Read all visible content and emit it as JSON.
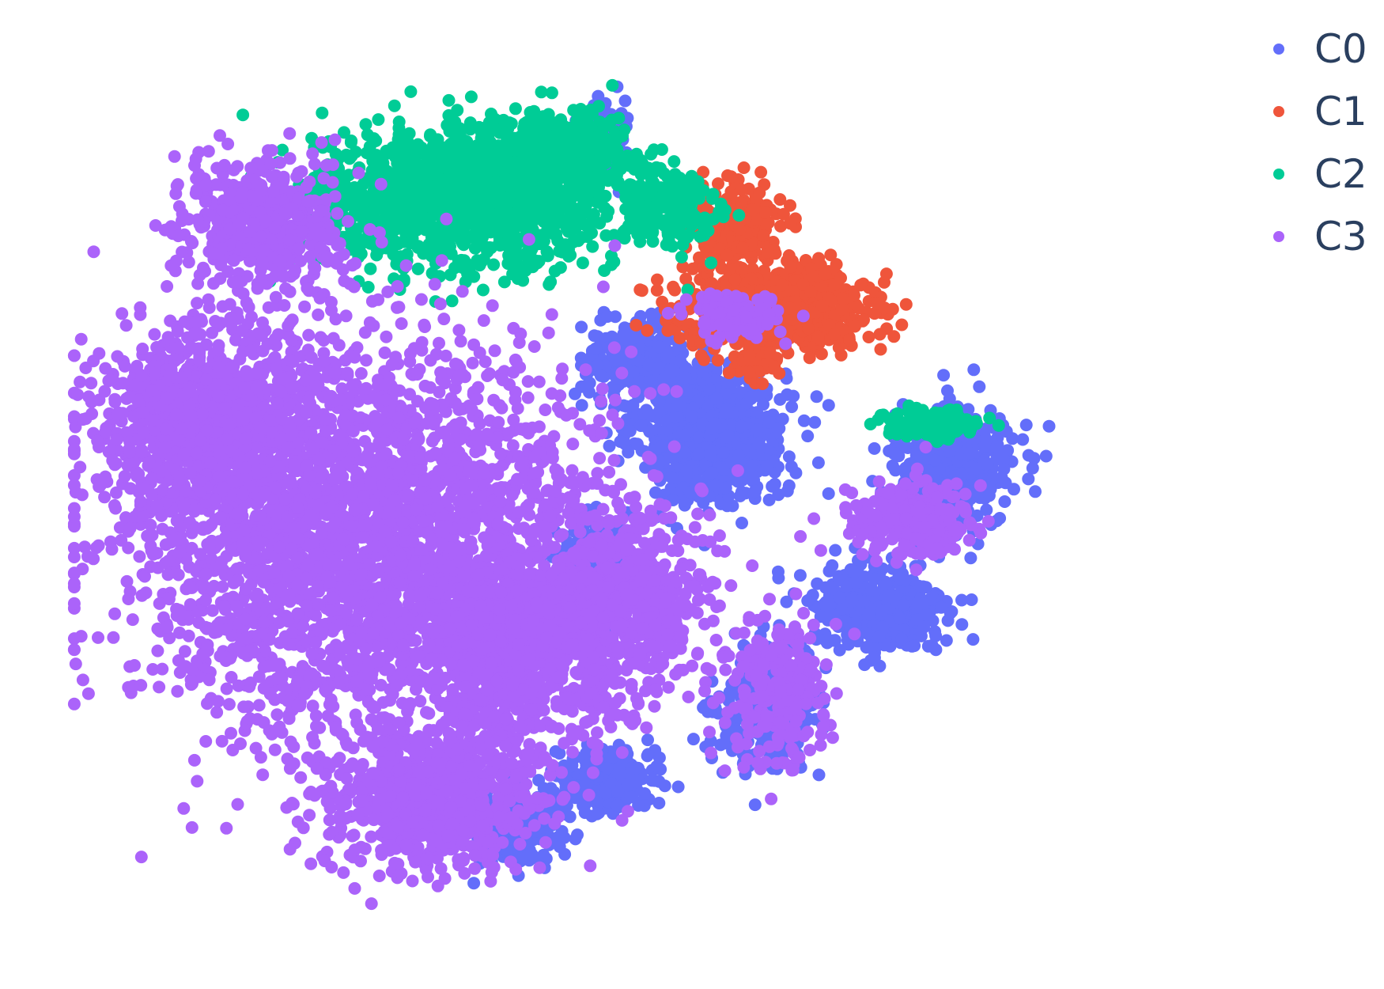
{
  "chart_data": {
    "type": "scatter",
    "title": "",
    "xlabel": "",
    "ylabel": "",
    "axes_visible": false,
    "grid": false,
    "legend_position": "top-right",
    "xlim": [
      0,
      100
    ],
    "ylim": [
      0,
      100
    ],
    "marker_size": 8,
    "series": [
      {
        "name": "C0",
        "color": "#636efa",
        "clusters": [
          {
            "cx": 59,
            "cy": 57,
            "rx": 6,
            "ry": 7,
            "n": 900
          },
          {
            "cx": 52,
            "cy": 65,
            "rx": 4,
            "ry": 4,
            "n": 300
          },
          {
            "cx": 81,
            "cy": 53,
            "rx": 5,
            "ry": 6,
            "n": 450
          },
          {
            "cx": 74,
            "cy": 37,
            "rx": 6,
            "ry": 5,
            "n": 400
          },
          {
            "cx": 64,
            "cy": 26,
            "rx": 4,
            "ry": 6,
            "n": 300
          },
          {
            "cx": 49,
            "cy": 18,
            "rx": 4,
            "ry": 3,
            "n": 300
          },
          {
            "cx": 41,
            "cy": 13,
            "rx": 4,
            "ry": 4,
            "n": 200
          },
          {
            "cx": 49,
            "cy": 89,
            "rx": 2,
            "ry": 4,
            "n": 150
          },
          {
            "cx": 48,
            "cy": 42,
            "rx": 3,
            "ry": 5,
            "n": 200
          }
        ]
      },
      {
        "name": "C1",
        "color": "#ef553b",
        "clusters": [
          {
            "cx": 65,
            "cy": 71,
            "rx": 8,
            "ry": 4,
            "n": 700
          },
          {
            "cx": 61,
            "cy": 80,
            "rx": 4,
            "ry": 4,
            "n": 250
          },
          {
            "cx": 63,
            "cy": 65,
            "rx": 2,
            "ry": 2,
            "n": 60
          }
        ]
      },
      {
        "name": "C2",
        "color": "#00cc96",
        "clusters": [
          {
            "cx": 36,
            "cy": 83,
            "rx": 12,
            "ry": 7,
            "n": 1300
          },
          {
            "cx": 45,
            "cy": 88,
            "rx": 6,
            "ry": 4,
            "n": 400
          },
          {
            "cx": 55,
            "cy": 82,
            "rx": 4,
            "ry": 4,
            "n": 200
          },
          {
            "cx": 79,
            "cy": 58,
            "rx": 4,
            "ry": 1.5,
            "n": 120
          }
        ]
      },
      {
        "name": "C3",
        "color": "#ab63fa",
        "clusters": [
          {
            "cx": 27,
            "cy": 45,
            "rx": 20,
            "ry": 20,
            "n": 3000
          },
          {
            "cx": 13,
            "cy": 58,
            "rx": 9,
            "ry": 10,
            "n": 900
          },
          {
            "cx": 18,
            "cy": 80,
            "rx": 7,
            "ry": 7,
            "n": 500
          },
          {
            "cx": 42,
            "cy": 33,
            "rx": 9,
            "ry": 11,
            "n": 900
          },
          {
            "cx": 33,
            "cy": 16,
            "rx": 9,
            "ry": 7,
            "n": 700
          },
          {
            "cx": 52,
            "cy": 38,
            "rx": 6,
            "ry": 8,
            "n": 500
          },
          {
            "cx": 65,
            "cy": 28,
            "rx": 4,
            "ry": 7,
            "n": 250
          },
          {
            "cx": 77,
            "cy": 47,
            "rx": 5,
            "ry": 4,
            "n": 250
          },
          {
            "cx": 61,
            "cy": 70,
            "rx": 4,
            "ry": 2,
            "n": 150
          }
        ]
      }
    ]
  },
  "legend": {
    "items": [
      {
        "label": "C0",
        "color": "#636efa"
      },
      {
        "label": "C1",
        "color": "#ef553b"
      },
      {
        "label": "C2",
        "color": "#00cc96"
      },
      {
        "label": "C3",
        "color": "#ab63fa"
      }
    ]
  }
}
